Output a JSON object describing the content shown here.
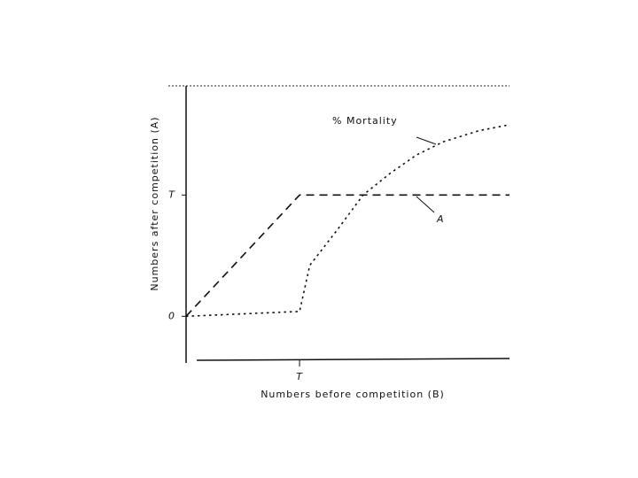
{
  "chart_data": {
    "type": "line",
    "xlabel": "Numbers before competition (B)",
    "ylabel": "Numbers after competition (A)",
    "xlim": [
      0,
      2.85
    ],
    "ylim": [
      -0.37,
      1.9
    ],
    "xticks": [
      {
        "value": 1,
        "label": "T"
      }
    ],
    "yticks": [
      {
        "value": 0,
        "label": "0"
      },
      {
        "value": 1,
        "label": "T"
      }
    ],
    "series": [
      {
        "name": "A",
        "color": "#111111",
        "dash": "dashed",
        "x": [
          0,
          1,
          2.85
        ],
        "values": [
          0,
          1,
          1
        ]
      },
      {
        "name": "% Mortality",
        "color": "#111111",
        "dash": "dotted",
        "x": [
          0,
          1,
          1.09,
          1.33,
          1.56,
          1.8,
          2.03,
          2.27,
          2.58,
          2.85
        ],
        "values": [
          0,
          0.04,
          0.42,
          0.71,
          1,
          1.18,
          1.33,
          1.44,
          1.53,
          1.58
        ]
      }
    ]
  }
}
